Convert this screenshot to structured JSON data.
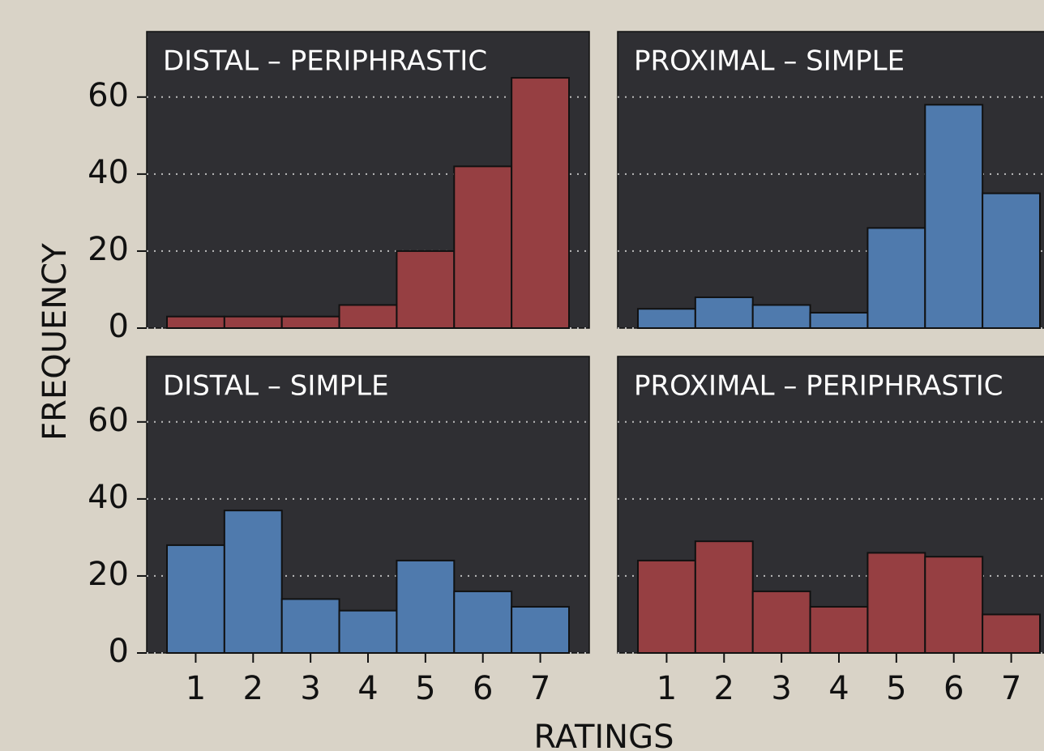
{
  "chart_data": [
    {
      "type": "bar",
      "title": "DISTAL – PERIPHRASTIC",
      "ylabel": "FREQUENCY",
      "categories": [
        "1",
        "2",
        "3",
        "4",
        "5",
        "6",
        "7"
      ],
      "values": [
        3,
        3,
        3,
        6,
        20,
        42,
        65
      ],
      "color": "#963f42",
      "ylim": [
        0,
        77
      ],
      "yticks": [
        0,
        20,
        40,
        60
      ],
      "grid": true
    },
    {
      "type": "bar",
      "title": "PROXIMAL – SIMPLE",
      "categories": [
        "1",
        "2",
        "3",
        "4",
        "5",
        "6",
        "7"
      ],
      "values": [
        5,
        8,
        6,
        4,
        26,
        58,
        35
      ],
      "color": "#4f7aad",
      "ylim": [
        0,
        77
      ],
      "yticks": [
        0,
        20,
        40,
        60
      ],
      "grid": true
    },
    {
      "type": "bar",
      "title": "DISTAL – SIMPLE",
      "xlabel": "RATINGS",
      "categories": [
        "1",
        "2",
        "3",
        "4",
        "5",
        "6",
        "7"
      ],
      "values": [
        28,
        37,
        14,
        11,
        24,
        16,
        12
      ],
      "color": "#4f7aad",
      "ylim": [
        0,
        77
      ],
      "yticks": [
        0,
        20,
        40,
        60
      ],
      "grid": true
    },
    {
      "type": "bar",
      "title": "PROXIMAL – PERIPHRASTIC",
      "categories": [
        "1",
        "2",
        "3",
        "4",
        "5",
        "6",
        "7"
      ],
      "values": [
        24,
        29,
        16,
        12,
        26,
        25,
        10
      ],
      "color": "#963f42",
      "ylim": [
        0,
        77
      ],
      "yticks": [
        0,
        20,
        40,
        60
      ],
      "grid": true
    }
  ]
}
